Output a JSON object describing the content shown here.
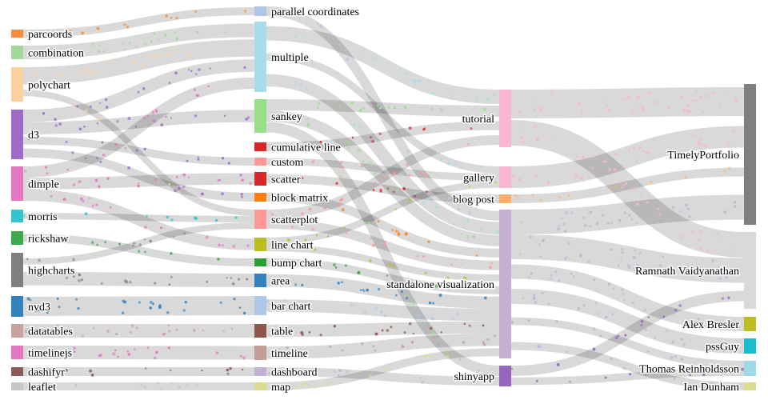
{
  "diagram": {
    "type": "sankey",
    "columns": [
      [
        {
          "id": "parcoords",
          "label": "parcoords",
          "color": "#fd8d3c"
        },
        {
          "id": "combination",
          "label": "combination",
          "color": "#a1d99b"
        },
        {
          "id": "polychart",
          "label": "polychart",
          "color": "#fdd0a2"
        },
        {
          "id": "d3",
          "label": "d3",
          "color": "#9e6ac8"
        },
        {
          "id": "dimple",
          "label": "dimple",
          "color": "#e377c2"
        },
        {
          "id": "morris",
          "label": "morris",
          "color": "#30c5d0"
        },
        {
          "id": "rickshaw",
          "label": "rickshaw",
          "color": "#3caa4b"
        },
        {
          "id": "highcharts",
          "label": "highcharts",
          "color": "#7f7f7f"
        },
        {
          "id": "nvd3",
          "label": "nvd3",
          "color": "#3182bd"
        },
        {
          "id": "datatables",
          "label": "datatables",
          "color": "#c9a39b"
        },
        {
          "id": "timelinejs",
          "label": "timelinejs",
          "color": "#e377c2"
        },
        {
          "id": "dashifyr",
          "label": "dashifyr",
          "color": "#8c5a5a"
        },
        {
          "id": "leaflet",
          "label": "leaflet",
          "color": "#c7c7c7"
        }
      ],
      [
        {
          "id": "parallel_coordinates",
          "label": "parallel coordinates",
          "color": "#aec7e8"
        },
        {
          "id": "multiple",
          "label": "multiple",
          "color": "#a6dde8"
        },
        {
          "id": "sankey",
          "label": "sankey",
          "color": "#98df8a"
        },
        {
          "id": "cumulative_line",
          "label": "cumulative line",
          "color": "#d62728"
        },
        {
          "id": "custom",
          "label": "custom",
          "color": "#ff9896"
        },
        {
          "id": "scatter",
          "label": "scatter",
          "color": "#d62728"
        },
        {
          "id": "block_matrix",
          "label": "block matrix",
          "color": "#ff7f0e"
        },
        {
          "id": "scatterplot",
          "label": "scatterplot",
          "color": "#ff9896"
        },
        {
          "id": "line_chart",
          "label": "line chart",
          "color": "#bcbd22"
        },
        {
          "id": "bump_chart",
          "label": "bump chart",
          "color": "#2ca02c"
        },
        {
          "id": "area",
          "label": "area",
          "color": "#3182bd"
        },
        {
          "id": "bar_chart",
          "label": "bar chart",
          "color": "#aec7e8"
        },
        {
          "id": "table",
          "label": "table",
          "color": "#8c564b"
        },
        {
          "id": "timeline",
          "label": "timeline",
          "color": "#c49c94"
        },
        {
          "id": "dashboard",
          "label": "dashboard",
          "color": "#c5b0d5"
        },
        {
          "id": "map",
          "label": "map",
          "color": "#dbdb8d"
        }
      ],
      [
        {
          "id": "tutorial",
          "label": "tutorial",
          "color": "#f7b6d2"
        },
        {
          "id": "gallery",
          "label": "gallery",
          "color": "#f7b6d2"
        },
        {
          "id": "blog_post",
          "label": "blog post",
          "color": "#fdae6b"
        },
        {
          "id": "standalone_visualization",
          "label": "standalone visualization",
          "color": "#c5b0d5"
        },
        {
          "id": "shinyapp",
          "label": "shinyapp",
          "color": "#9467bd"
        }
      ],
      [
        {
          "id": "timelyportfolio",
          "label": "TimelyPortfolio",
          "color": "#7f7f7f"
        },
        {
          "id": "ramnath",
          "label": "Ramnath Vaidyanathan",
          "color": "#d9d9d9"
        },
        {
          "id": "alex",
          "label": "Alex Bresler",
          "color": "#bcbd22"
        },
        {
          "id": "pssguy",
          "label": "pssGuy",
          "color": "#17becf"
        },
        {
          "id": "thomas",
          "label": "Thomas Reinholdsson",
          "color": "#9edae5"
        },
        {
          "id": "ian",
          "label": "Ian Dunham",
          "color": "#dbdb8d"
        }
      ]
    ],
    "links": [
      {
        "source": "parcoords",
        "target": "parallel_coordinates"
      },
      {
        "source": "combination",
        "target": "multiple"
      },
      {
        "source": "polychart",
        "target": "multiple"
      },
      {
        "source": "polychart",
        "target": "scatterplot"
      },
      {
        "source": "d3",
        "target": "multiple"
      },
      {
        "source": "d3",
        "target": "sankey"
      },
      {
        "source": "d3",
        "target": "custom"
      },
      {
        "source": "d3",
        "target": "block_matrix"
      },
      {
        "source": "dimple",
        "target": "multiple"
      },
      {
        "source": "dimple",
        "target": "scatter"
      },
      {
        "source": "dimple",
        "target": "line_chart"
      },
      {
        "source": "morris",
        "target": "scatterplot"
      },
      {
        "source": "rickshaw",
        "target": "bump_chart"
      },
      {
        "source": "highcharts",
        "target": "scatterplot"
      },
      {
        "source": "highcharts",
        "target": "area"
      },
      {
        "source": "nvd3",
        "target": "bar_chart"
      },
      {
        "source": "datatables",
        "target": "table"
      },
      {
        "source": "timelinejs",
        "target": "timeline"
      },
      {
        "source": "dashifyr",
        "target": "dashboard"
      },
      {
        "source": "leaflet",
        "target": "map"
      },
      {
        "source": "parallel_coordinates",
        "target": "standalone_visualization"
      },
      {
        "source": "multiple",
        "target": "tutorial"
      },
      {
        "source": "multiple",
        "target": "gallery"
      },
      {
        "source": "multiple",
        "target": "standalone_visualization"
      },
      {
        "source": "sankey",
        "target": "tutorial"
      },
      {
        "source": "sankey",
        "target": "standalone_visualization"
      },
      {
        "source": "sankey",
        "target": "shinyapp"
      },
      {
        "source": "cumulative_line",
        "target": "tutorial"
      },
      {
        "source": "custom",
        "target": "gallery"
      },
      {
        "source": "scatter",
        "target": "blog_post"
      },
      {
        "source": "block_matrix",
        "target": "standalone_visualization"
      },
      {
        "source": "scatterplot",
        "target": "tutorial"
      },
      {
        "source": "scatterplot",
        "target": "standalone_visualization"
      },
      {
        "source": "line_chart",
        "target": "gallery"
      },
      {
        "source": "line_chart",
        "target": "standalone_visualization"
      },
      {
        "source": "bump_chart",
        "target": "standalone_visualization"
      },
      {
        "source": "area",
        "target": "standalone_visualization"
      },
      {
        "source": "bar_chart",
        "target": "standalone_visualization"
      },
      {
        "source": "table",
        "target": "standalone_visualization"
      },
      {
        "source": "timeline",
        "target": "standalone_visualization"
      },
      {
        "source": "dashboard",
        "target": "shinyapp"
      },
      {
        "source": "map",
        "target": "standalone_visualization"
      },
      {
        "source": "tutorial",
        "target": "timelyportfolio"
      },
      {
        "source": "tutorial",
        "target": "ramnath"
      },
      {
        "source": "gallery",
        "target": "timelyportfolio"
      },
      {
        "source": "blog_post",
        "target": "timelyportfolio"
      },
      {
        "source": "standalone_visualization",
        "target": "timelyportfolio"
      },
      {
        "source": "standalone_visualization",
        "target": "ramnath"
      },
      {
        "source": "standalone_visualization",
        "target": "alex"
      },
      {
        "source": "standalone_visualization",
        "target": "pssguy"
      },
      {
        "source": "standalone_visualization",
        "target": "thomas"
      },
      {
        "source": "standalone_visualization",
        "target": "ian"
      },
      {
        "source": "shinyapp",
        "target": "ramnath"
      },
      {
        "source": "shinyapp",
        "target": "thomas"
      }
    ]
  }
}
